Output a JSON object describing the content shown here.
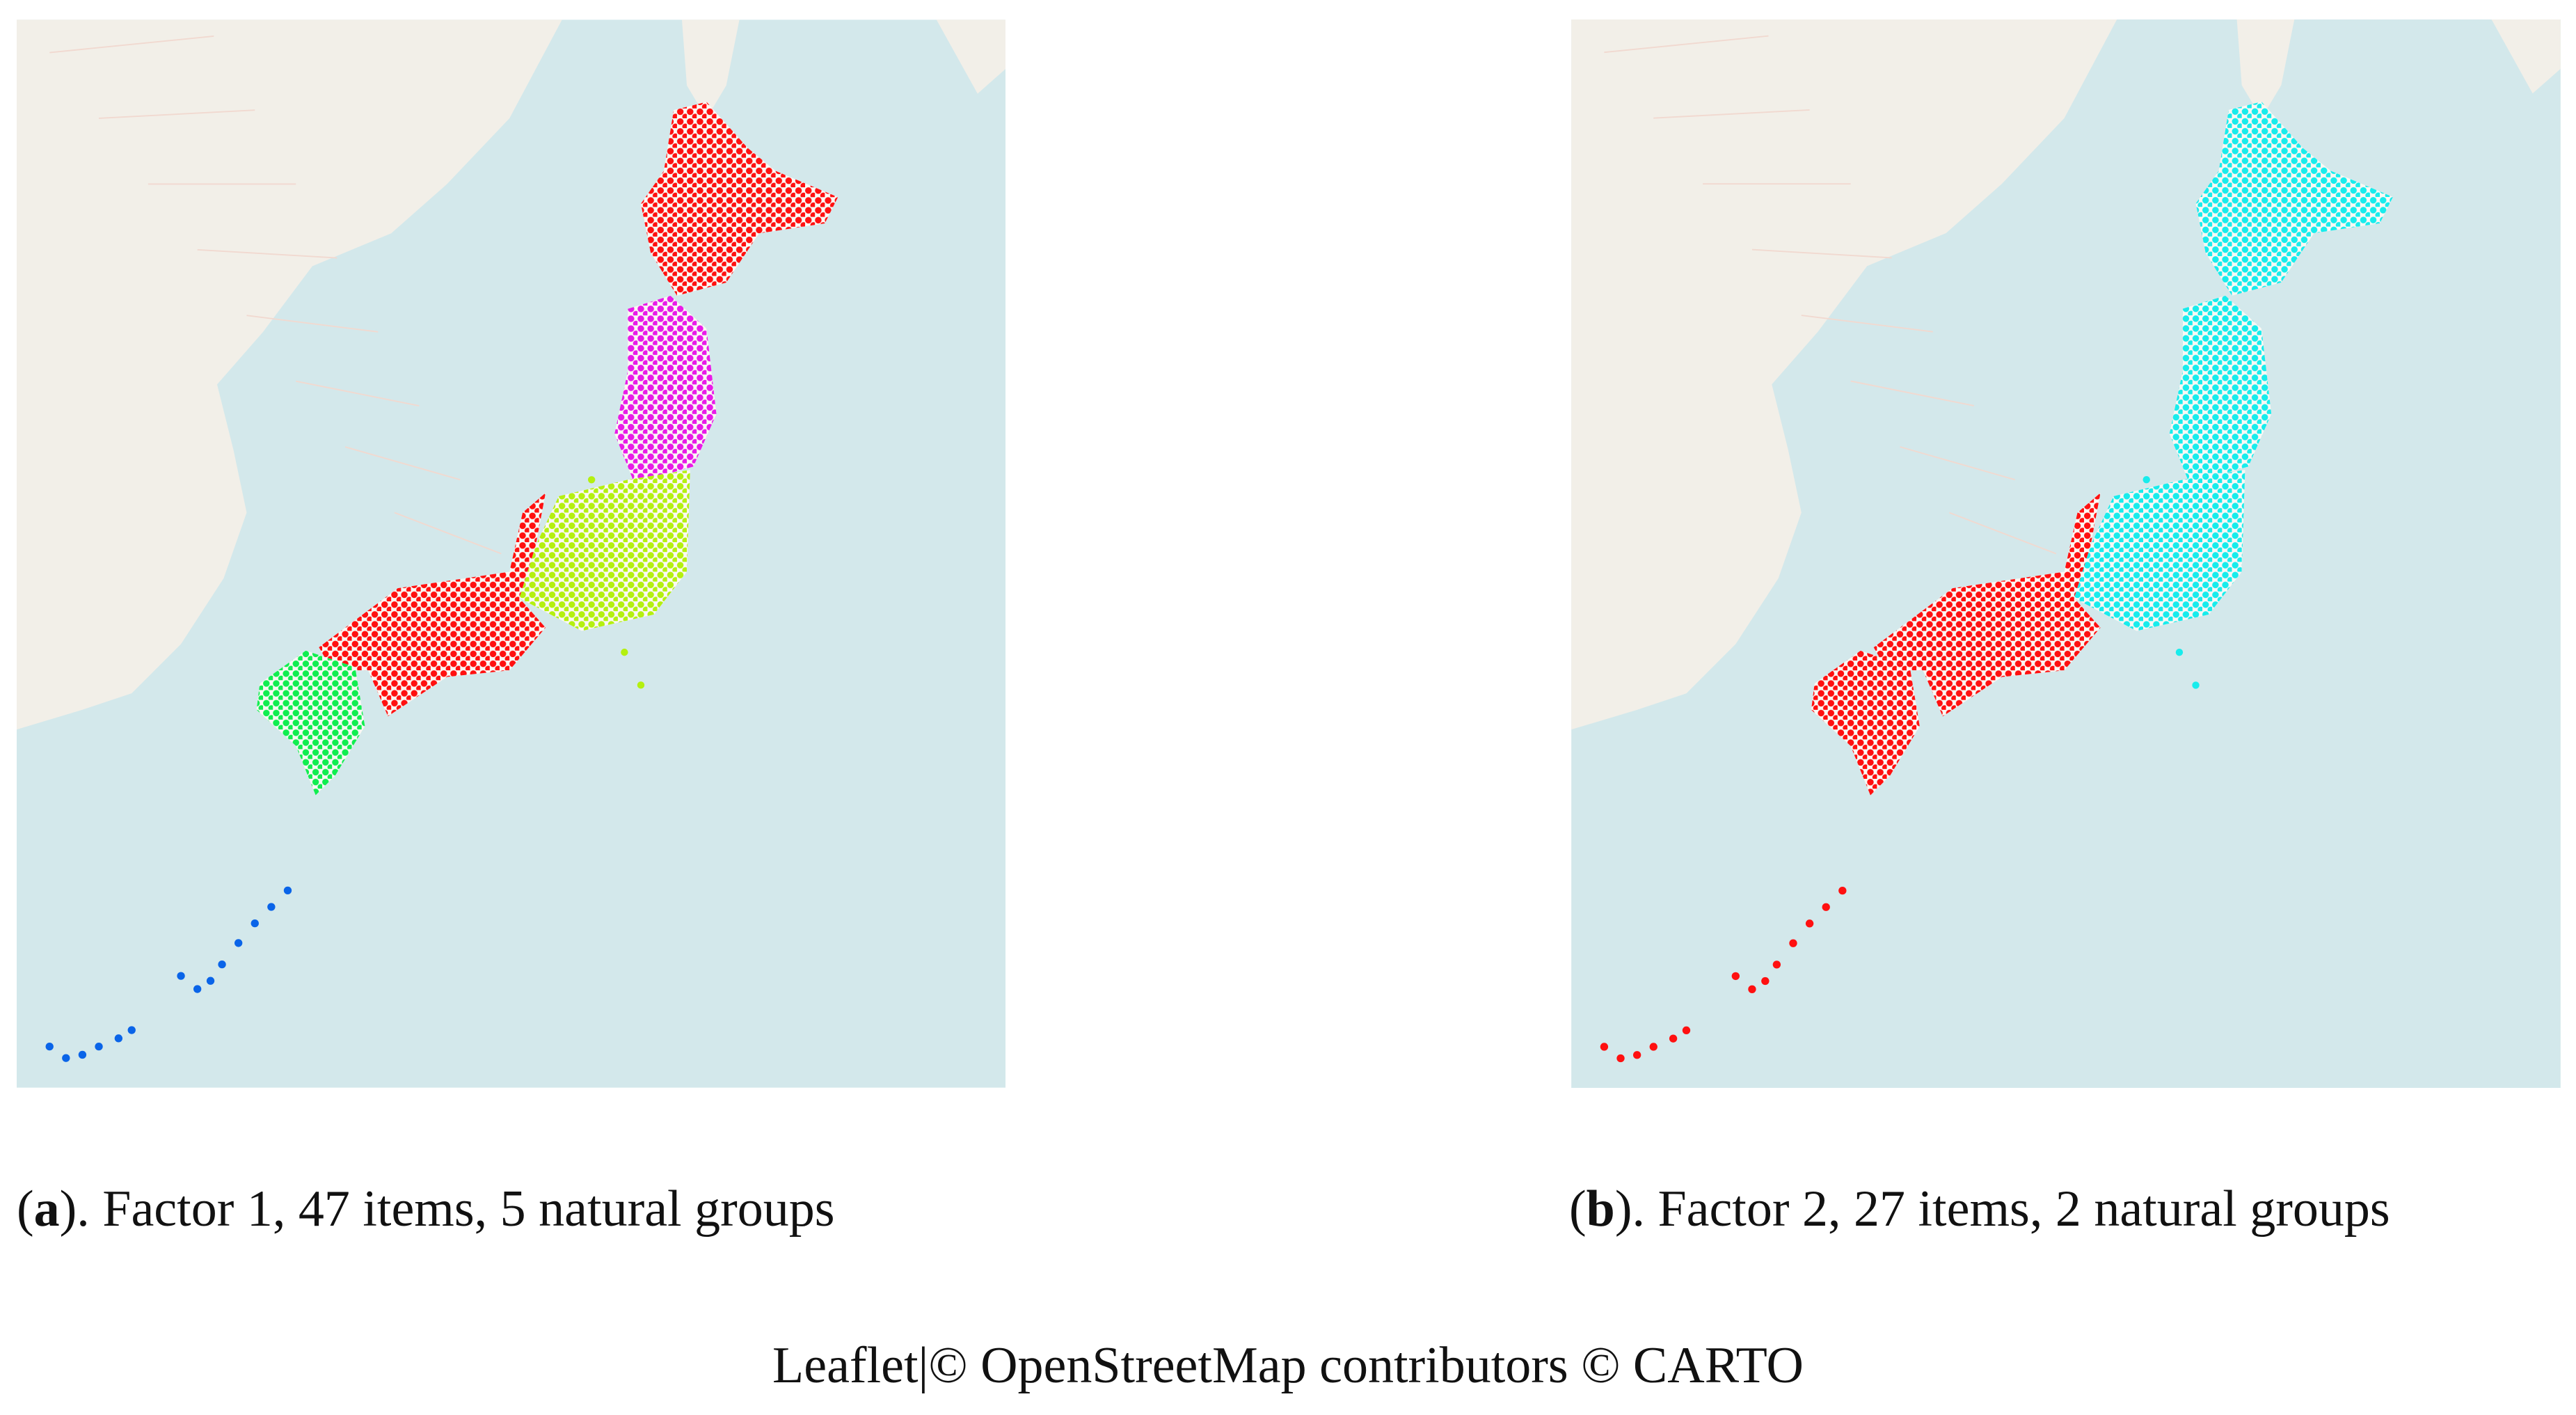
{
  "panels": [
    {
      "open": "(",
      "label": "a",
      "caption": "). Factor 1, 47 items, 5 natural groups"
    },
    {
      "open": "(",
      "label": "b",
      "caption": "). Factor 2, 27 items, 2 natural groups"
    }
  ],
  "attribution": "Leaflet|© OpenStreetMap contributors © CARTO"
}
